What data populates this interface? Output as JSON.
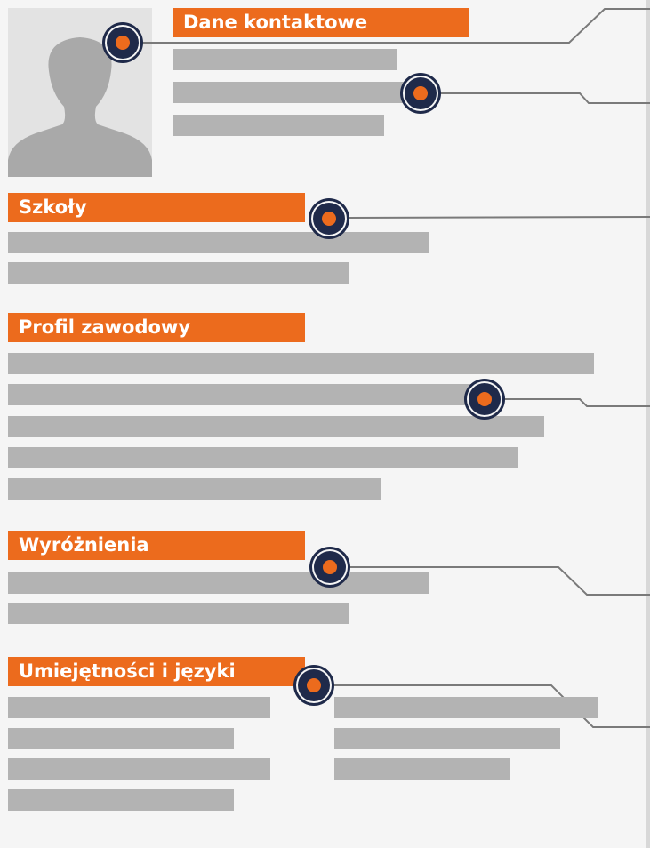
{
  "sections": {
    "contact": {
      "title": "Dane kontaktowe"
    },
    "schools": {
      "title": "Szkoły"
    },
    "profile": {
      "title": "Profil zawodowy"
    },
    "awards": {
      "title": "Wyróżnienia"
    },
    "skills": {
      "title": "Umiejętności i języki"
    }
  }
}
